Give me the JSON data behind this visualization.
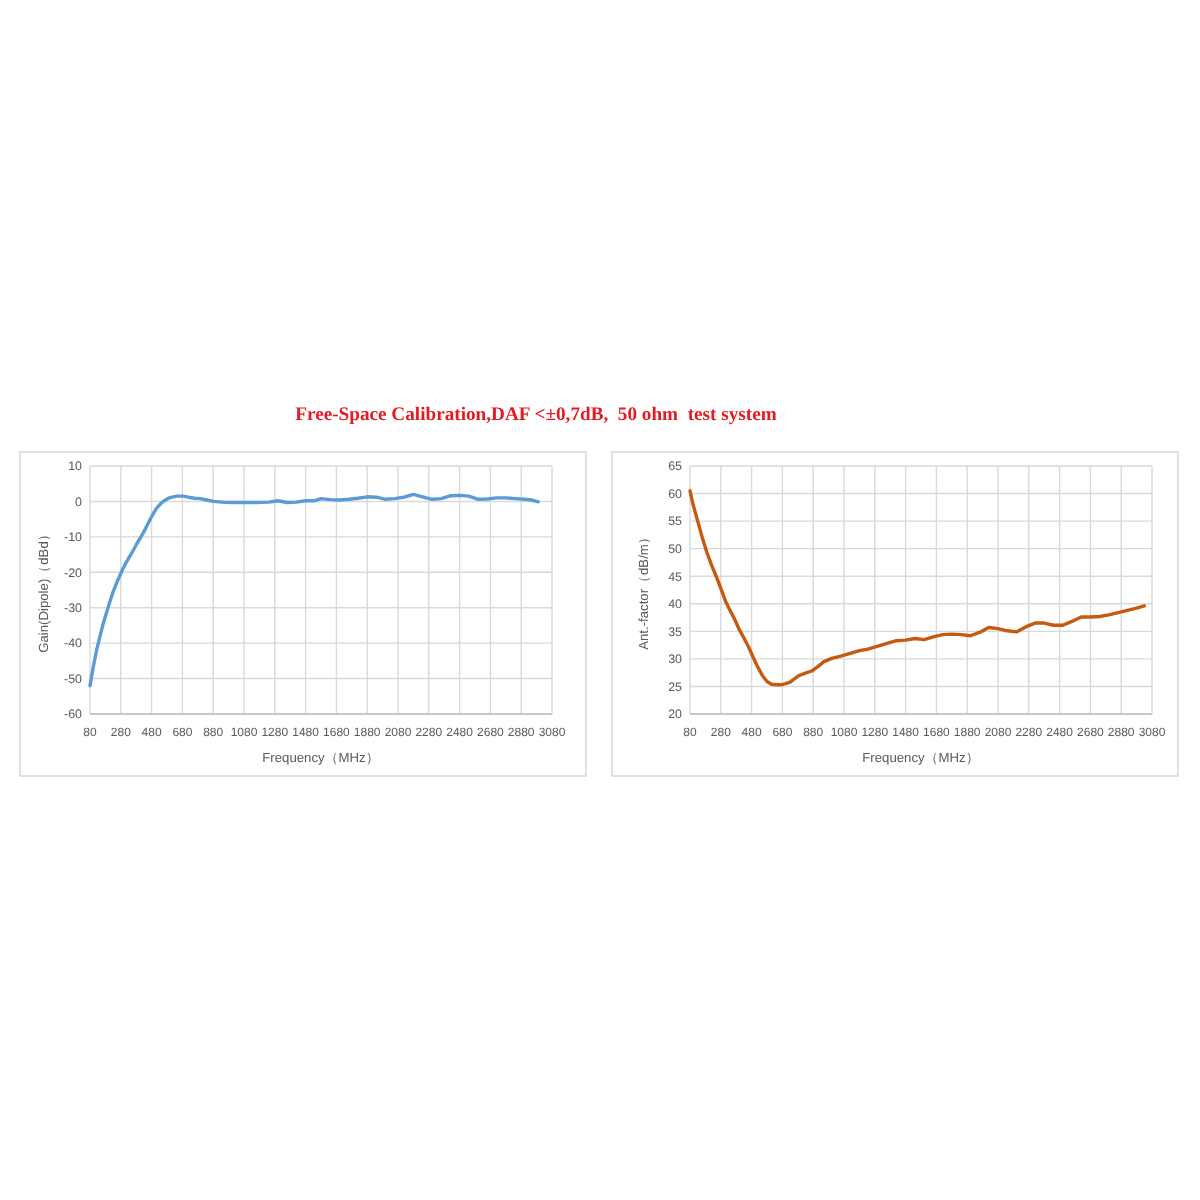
{
  "chart_data": [
    {
      "type": "line",
      "title": "Free-Space Calibration,DAF <±0,7dB,  50 ohm  test system",
      "xlabel": "Frequency（MHz）",
      "ylabel": "Gain(Dipole)（dBd）",
      "xlim": [
        80,
        3080
      ],
      "xticks": [
        80,
        280,
        480,
        680,
        880,
        1080,
        1280,
        1480,
        1680,
        1880,
        2080,
        2280,
        2480,
        2680,
        2880,
        3080
      ],
      "ylim": [
        -60,
        10
      ],
      "yticks": [
        -60,
        -50,
        -40,
        -30,
        -20,
        -10,
        0,
        10
      ],
      "grid": true,
      "x": [
        80,
        100,
        123,
        145,
        167,
        190,
        210,
        230,
        253,
        275,
        296,
        318,
        340,
        362,
        383,
        405,
        426,
        448,
        470,
        492,
        513,
        535,
        556,
        578,
        600,
        620,
        643,
        665,
        686,
        710,
        730,
        760,
        794,
        840,
        881,
        940,
        1000,
        1080,
        1160,
        1240,
        1300,
        1360,
        1420,
        1480,
        1540,
        1580,
        1640,
        1700,
        1760,
        1820,
        1880,
        1940,
        2000,
        2060,
        2120,
        2180,
        2240,
        2300,
        2360,
        2420,
        2480,
        2540,
        2600,
        2660,
        2720,
        2780,
        2840,
        2900,
        2950,
        2990
      ],
      "series": [
        {
          "color": "#5b9bd5",
          "values": [
            -52,
            -47,
            -42,
            -38,
            -34.3,
            -31,
            -28.2,
            -25.5,
            -23,
            -20.8,
            -18.8,
            -17,
            -15.4,
            -13.7,
            -12,
            -10.4,
            -8.9,
            -7,
            -5.1,
            -3.4,
            -1.9,
            -0.8,
            0,
            0.6,
            1.1,
            1.3,
            1.5,
            1.5,
            1.5,
            1.3,
            1.1,
            0.9,
            0.8,
            0.4,
            0,
            -0.2,
            -0.3,
            -0.3,
            -0.3,
            -0.2,
            0.2,
            -0.3,
            -0.2,
            0.2,
            0.2,
            0.8,
            0.5,
            0.4,
            0.6,
            0.9,
            1.3,
            1.2,
            0.6,
            0.8,
            1.2,
            2,
            1.3,
            0.6,
            0.8,
            1.6,
            1.7,
            1.5,
            0.6,
            0.7,
            1,
            1,
            0.8,
            0.6,
            0.4,
            -0.1
          ]
        }
      ]
    },
    {
      "type": "line",
      "xlabel": "Frequency（MHz）",
      "ylabel": "Ant.-factor（dB/m）",
      "xlim": [
        80,
        3080
      ],
      "xticks": [
        80,
        280,
        480,
        680,
        880,
        1080,
        1280,
        1480,
        1680,
        1880,
        2080,
        2280,
        2480,
        2680,
        2880,
        3080
      ],
      "ylim": [
        20,
        65
      ],
      "yticks": [
        20,
        25,
        30,
        35,
        40,
        45,
        50,
        55,
        60,
        65
      ],
      "grid": true,
      "x": [
        80,
        100,
        130,
        160,
        190,
        220,
        250,
        280,
        310,
        340,
        370,
        400,
        430,
        460,
        490,
        520,
        550,
        580,
        610,
        640,
        670,
        700,
        730,
        760,
        790,
        830,
        870,
        910,
        950,
        1000,
        1060,
        1120,
        1180,
        1240,
        1300,
        1360,
        1420,
        1480,
        1540,
        1600,
        1660,
        1720,
        1780,
        1840,
        1900,
        1960,
        2020,
        2080,
        2140,
        2200,
        2260,
        2320,
        2380,
        2440,
        2500,
        2560,
        2620,
        2680,
        2740,
        2800,
        2860,
        2920,
        2980,
        3030
      ],
      "series": [
        {
          "color": "#c55a11",
          "values": [
            60.5,
            58,
            55,
            52,
            49.3,
            47,
            45,
            42.8,
            40.5,
            38.8,
            37.2,
            35.3,
            33.8,
            32.2,
            30.3,
            28.5,
            27,
            25.9,
            25.4,
            25.3,
            25.3,
            25.5,
            25.8,
            26.4,
            27,
            27.4,
            27.8,
            28.6,
            29.5,
            30.1,
            30.5,
            31,
            31.5,
            31.8,
            32.3,
            32.8,
            33.3,
            33.4,
            33.7,
            33.5,
            34,
            34.4,
            34.5,
            34.4,
            34.2,
            34.8,
            35.7,
            35.5,
            35.1,
            34.9,
            35.8,
            36.5,
            36.5,
            36.1,
            36.1,
            36.8,
            37.6,
            37.6,
            37.7,
            38,
            38.4,
            38.8,
            39.2,
            39.6
          ]
        }
      ]
    }
  ]
}
